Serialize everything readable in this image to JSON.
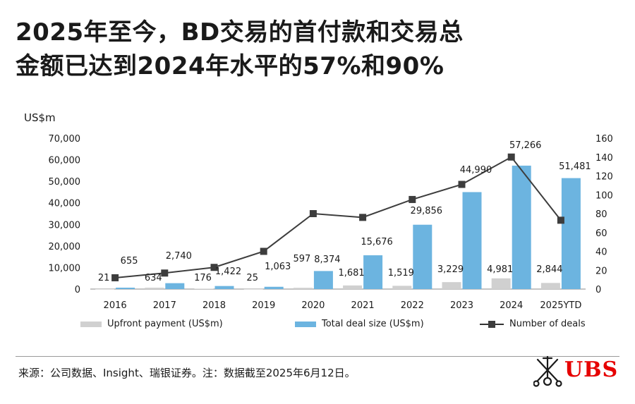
{
  "title_line1": "2025年至今，BD交易的首付款和交易总",
  "title_line2": "金额已达到2024年水平的57%和90%",
  "unit_label": "US$m",
  "chart_data": {
    "type": "bar",
    "categories": [
      "2016",
      "2017",
      "2018",
      "2019",
      "2020",
      "2021",
      "2022",
      "2023",
      "2024",
      "2025YTD"
    ],
    "series": [
      {
        "name": "Upfront payment (US$m)",
        "type": "bar",
        "axis": "left",
        "color": "#d0d0d0",
        "values": [
          21,
          634,
          176,
          25,
          597,
          1681,
          1519,
          3229,
          4981,
          2844
        ],
        "labels": [
          "21",
          "634",
          "176",
          "25",
          "597",
          "1,681",
          "1,519",
          "3,229",
          "4,981",
          "2,844"
        ]
      },
      {
        "name": "Total deal size (US$m)",
        "type": "bar",
        "axis": "left",
        "color": "#6cb4e0",
        "values": [
          655,
          2740,
          1422,
          1063,
          8374,
          15676,
          29856,
          44990,
          57266,
          51481
        ],
        "labels": [
          "655",
          "2,740",
          "1,422",
          "1,063",
          "8,374",
          "15,676",
          "29,856",
          "44,990",
          "57,266",
          "51,481"
        ]
      },
      {
        "name": "Number of deals",
        "type": "line",
        "axis": "right",
        "color": "#3d3d3d",
        "values": [
          12,
          17,
          23,
          40,
          80,
          76,
          95,
          111,
          140,
          73
        ]
      }
    ],
    "left_axis": {
      "min": 0,
      "max": 70000,
      "ticks": [
        0,
        10000,
        20000,
        30000,
        40000,
        50000,
        60000,
        70000
      ],
      "tick_labels": [
        "0",
        "10,000",
        "20,000",
        "30,000",
        "40,000",
        "50,000",
        "60,000",
        "70,000"
      ]
    },
    "right_axis": {
      "min": 0,
      "max": 160,
      "ticks": [
        0,
        20,
        40,
        60,
        80,
        100,
        120,
        140,
        160
      ],
      "tick_labels": [
        "0",
        "20",
        "40",
        "60",
        "80",
        "100",
        "120",
        "140",
        "160"
      ]
    },
    "grid": false,
    "legend_position": "bottom"
  },
  "legend": {
    "upfront": "Upfront payment (US$m)",
    "total": "Total deal size (US$m)",
    "deals": "Number of deals"
  },
  "source": "来源：公司数据、Insight、瑞银证券。注：数据截至2025年6月12日。",
  "logo_text": "UBS",
  "colors": {
    "upfront": "#d0d0d0",
    "total": "#6cb4e0",
    "line": "#3d3d3d",
    "brand": "#e60000"
  }
}
